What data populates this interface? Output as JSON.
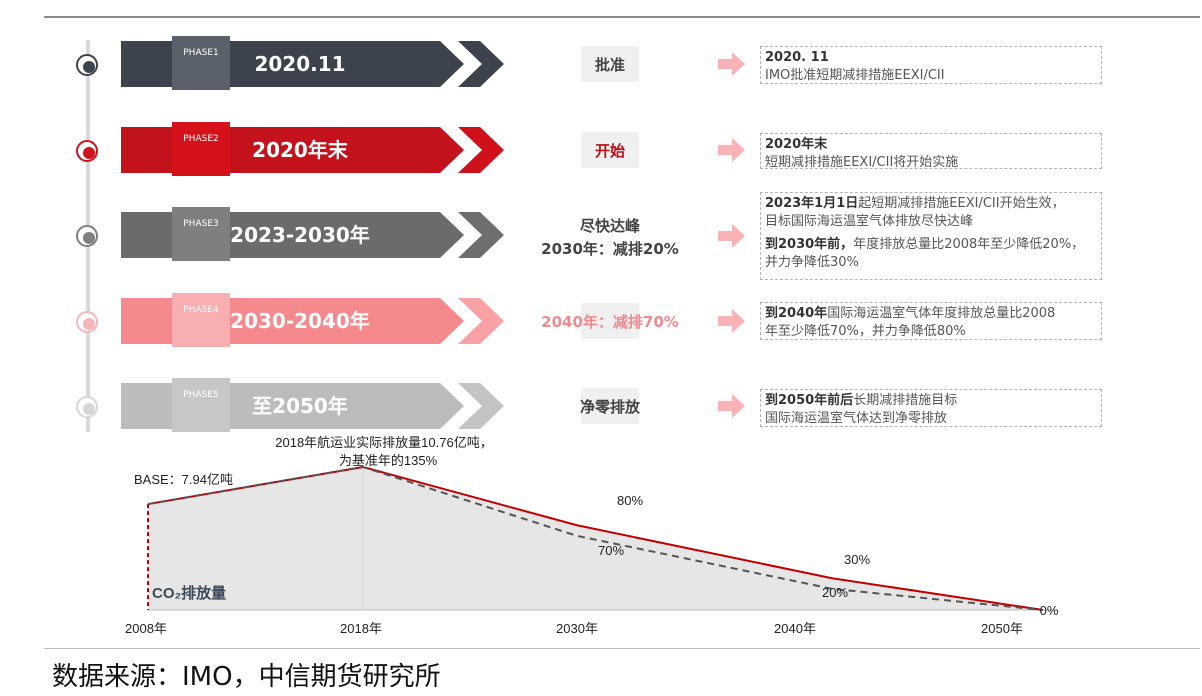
{
  "phases": [
    {
      "tab": "PHASE1",
      "label": "2020.11",
      "action": "批准",
      "detail_bold": "2020. 11",
      "detail_lines": [
        "IMO批准短期减排措施EEXI/CII"
      ],
      "color": "#3d434c",
      "tab_color": "#5a616b",
      "arrow_color": "#3d434c",
      "dot": "#3d434c"
    },
    {
      "tab": "PHASE2",
      "label": "2020年末",
      "action": "开始",
      "detail_bold": "2020年末",
      "detail_lines": [
        "短期减排措施EEXI/CII将开始实施"
      ],
      "color": "#c4121c",
      "tab_color": "#d5121c",
      "arrow_color": "#d01119",
      "dot": "#d0111a"
    },
    {
      "tab": "PHASE3",
      "label": "2023-2030年",
      "action": "尽快达峰",
      "action2": "2030年：减排20%",
      "detail_bold": "2023年1月1日",
      "detail_rest": "起短期减排措施EEXI/CII开始生效，",
      "detail_lines": [
        "目标国际海运温室气体排放尽快达峰"
      ],
      "detail_bold2": "到2030年前，",
      "detail_rest2": "年度排放总量比2008年至少降低20%，",
      "detail_lines2": [
        "并力争降低30%"
      ],
      "color": "#6b6b6b",
      "tab_color": "#7f7f7f",
      "arrow_color": "#6e6e6e",
      "dot": "#7f7f7f"
    },
    {
      "tab": "PHASE4",
      "label": "2030-2040年",
      "action": "2040年：减排70%",
      "detail_bold": "到2040年",
      "detail_rest": "国际海运温室气体年度排放总量比2008",
      "detail_lines": [
        "年至少降低70%，并力争降低80%"
      ],
      "color": "#f5898e",
      "tab_color": "#f9aeb1",
      "arrow_color": "#f9a2a6",
      "dot": "#f8b5b8"
    },
    {
      "tab": "PHASE5",
      "label": "至2050年",
      "action": "净零排放",
      "detail_bold": "到2050年前后",
      "detail_rest": "长期减排措施目标",
      "detail_lines": [
        "国际海运温室气体达到净零排放"
      ],
      "color": "#bcbcbc",
      "tab_color": "#c7c7c7",
      "arrow_color": "#c4c4c4",
      "dot": "#d6d6d6"
    }
  ],
  "chart_data": {
    "type": "area",
    "x": [
      "2008年",
      "2018年",
      "2030年",
      "2040年",
      "2050年"
    ],
    "series": [
      {
        "values": [
          100,
          135,
          80,
          30,
          0
        ],
        "color": "#c00000",
        "labels": [
          "",
          "",
          "80%",
          "30%",
          "0%"
        ]
      },
      {
        "values": [
          100,
          135,
          70,
          20,
          0
        ],
        "color": "#555555",
        "labels": [
          "",
          "",
          "70%",
          "20%",
          ""
        ]
      }
    ],
    "annotations": {
      "base": "BASE：7.94亿吨",
      "peak_line1": "2018年航运业实际排放量10.76亿吨，",
      "peak_line2": "为基准年的135%",
      "ylabel": "CO₂排放量"
    }
  },
  "source": "数据来源：IMO，中信期货研究所"
}
